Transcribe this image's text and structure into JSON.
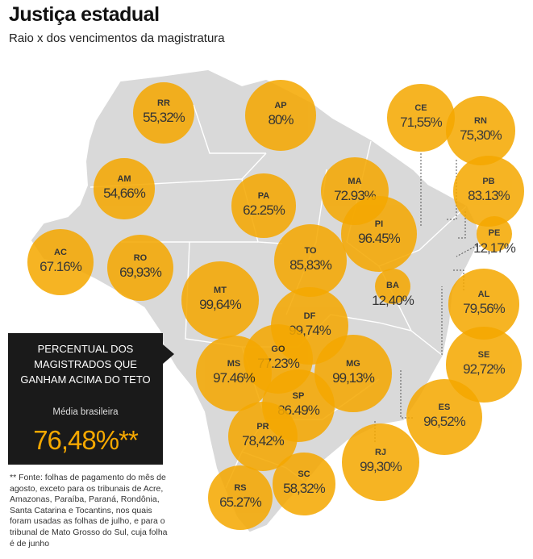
{
  "title": "Justiça estadual",
  "subtitle": "Raio x dos vencimentos da magistratura",
  "colors": {
    "bubble_fill": "#F5A800",
    "bubble_overlap": "#D94A1A",
    "map_fill": "#D9D9D9",
    "map_border": "#FFFFFF"
  },
  "chart_data": {
    "type": "bubble-map",
    "title": "Justiça estadual",
    "subtitle": "Raio x dos vencimentos da magistratura",
    "metric": "Percentual dos magistrados que ganham acima do teto",
    "unit": "%",
    "series": [
      {
        "state": "RR",
        "label": "55,32%",
        "value": 55.32
      },
      {
        "state": "AP",
        "label": "80%",
        "value": 80.0
      },
      {
        "state": "CE",
        "label": "71,55%",
        "value": 71.55
      },
      {
        "state": "RN",
        "label": "75,30%",
        "value": 75.3
      },
      {
        "state": "AM",
        "label": "54,66%",
        "value": 54.66
      },
      {
        "state": "PA",
        "label": "62.25%",
        "value": 62.25
      },
      {
        "state": "MA",
        "label": "72.93%",
        "value": 72.93
      },
      {
        "state": "PB",
        "label": "83.13%",
        "value": 83.13
      },
      {
        "state": "PE",
        "label": "12,17%",
        "value": 12.17
      },
      {
        "state": "AC",
        "label": "67.16%",
        "value": 67.16
      },
      {
        "state": "RO",
        "label": "69,93%",
        "value": 69.93
      },
      {
        "state": "TO",
        "label": "85,83%",
        "value": 85.83
      },
      {
        "state": "PI",
        "label": "96.45%",
        "value": 96.45
      },
      {
        "state": "BA",
        "label": "12,40%",
        "value": 12.4
      },
      {
        "state": "MT",
        "label": "99,64%",
        "value": 99.64
      },
      {
        "state": "DF",
        "label": "99,74%",
        "value": 99.74
      },
      {
        "state": "AL",
        "label": "79,56%",
        "value": 79.56
      },
      {
        "state": "GO",
        "label": "77.23%",
        "value": 77.23
      },
      {
        "state": "MS",
        "label": "97.46%",
        "value": 97.46
      },
      {
        "state": "MG",
        "label": "99,13%",
        "value": 99.13
      },
      {
        "state": "SE",
        "label": "92,72%",
        "value": 92.72
      },
      {
        "state": "SP",
        "label": "86.49%",
        "value": 86.49
      },
      {
        "state": "ES",
        "label": "96,52%",
        "value": 96.52
      },
      {
        "state": "PR",
        "label": "78,42%",
        "value": 78.42
      },
      {
        "state": "RJ",
        "label": "99,30%",
        "value": 99.3
      },
      {
        "state": "SC",
        "label": "58,32%",
        "value": 58.32
      },
      {
        "state": "RS",
        "label": "65.27%",
        "value": 65.27
      }
    ],
    "average": {
      "label": "Média brasileira",
      "value_label": "76,48%**",
      "value": 76.48
    }
  },
  "summary": {
    "heading": "PERCENTUAL DOS MAGISTRADOS  QUE GANHAM ACIMA DO TETO",
    "average_label": "Média brasileira",
    "average_value": "76,48%**"
  },
  "footnote": "** Fonte: folhas de pagamento do mês de agosto, exceto para os tribunais de Acre, Amazonas, Paraíba, Paraná, Rondônia, Santa Catarina e Tocantins, nos quais foram usadas as folhas de julho, e para o tribunal de Mato Grosso do Sul, cuja folha é de junho"
}
